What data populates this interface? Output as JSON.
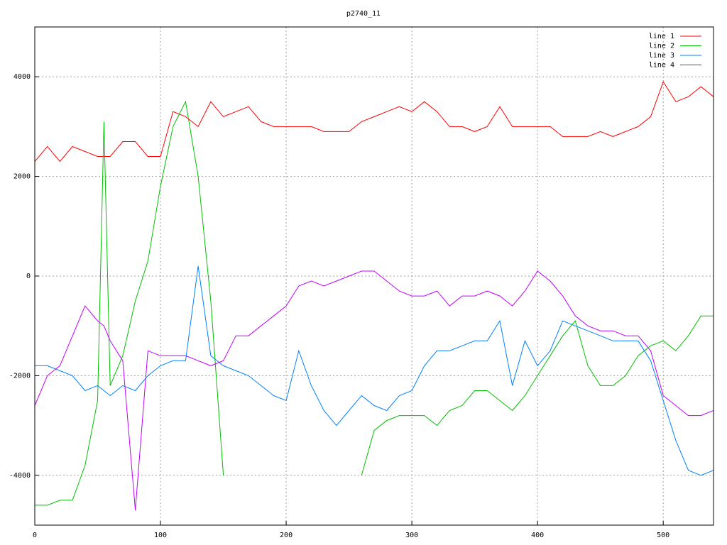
{
  "chart_data": {
    "type": "line",
    "title": "p2740_11",
    "x": [
      0,
      10,
      20,
      30,
      40,
      50,
      55,
      60,
      70,
      80,
      90,
      100,
      110,
      120,
      130,
      140,
      150,
      160,
      170,
      180,
      190,
      200,
      210,
      220,
      230,
      240,
      250,
      260,
      270,
      280,
      290,
      300,
      310,
      320,
      330,
      340,
      350,
      360,
      370,
      380,
      390,
      400,
      410,
      420,
      430,
      440,
      450,
      460,
      470,
      480,
      490,
      500,
      510,
      520,
      530,
      540
    ],
    "xlim": [
      0,
      540
    ],
    "xticks": [
      0,
      100,
      200,
      300,
      400,
      500
    ],
    "ylim": [
      -5000,
      5000
    ],
    "yticks": [
      -4000,
      -2000,
      0,
      2000,
      4000
    ],
    "grid": true,
    "legend": "top-right",
    "series": [
      {
        "name": "line 1",
        "color": "#ff0000",
        "values": [
          2300,
          2600,
          2300,
          2600,
          2500,
          2400,
          2400,
          2400,
          2700,
          2700,
          2400,
          2400,
          3300,
          3200,
          3000,
          3500,
          3200,
          3300,
          3400,
          3100,
          3000,
          3000,
          3000,
          3000,
          2900,
          2900,
          2900,
          3100,
          3200,
          3300,
          3400,
          3300,
          3500,
          3300,
          3000,
          3000,
          2900,
          3000,
          3400,
          3000,
          3000,
          3000,
          3000,
          2800,
          2800,
          2800,
          2900,
          2800,
          2900,
          3000,
          3200,
          3900,
          3500,
          3600,
          3800,
          3600
        ]
      },
      {
        "name": "line 2",
        "color": "#00c000",
        "values": [
          -4600,
          -4600,
          -4500,
          -4500,
          -3800,
          -2500,
          3100,
          -2200,
          -1600,
          -500,
          300,
          1800,
          3000,
          3500,
          2000,
          -500,
          -4000,
          null,
          null,
          null,
          null,
          null,
          null,
          null,
          null,
          null,
          null,
          -4000,
          -3100,
          -2900,
          -2800,
          -2800,
          -2800,
          -3000,
          -2700,
          -2600,
          -2300,
          -2300,
          -2500,
          -2700,
          -2400,
          -2000,
          -1600,
          -1200,
          -900,
          -1800,
          -2200,
          -2200,
          -2000,
          -1600,
          -1400,
          -1300,
          -1500,
          -1200,
          -800,
          -800
        ]
      },
      {
        "name": "line 3",
        "color": "#0080ff",
        "values": [
          -1800,
          -1800,
          -1900,
          -2000,
          -2300,
          -2200,
          -2300,
          -2400,
          -2200,
          -2300,
          -2000,
          -1800,
          -1700,
          -1700,
          200,
          -1600,
          -1800,
          -1900,
          -2000,
          -2200,
          -2400,
          -2500,
          -1500,
          -2200,
          -2700,
          -3000,
          -2700,
          -2400,
          -2600,
          -2700,
          -2400,
          -2300,
          -1800,
          -1500,
          -1500,
          -1400,
          -1300,
          -1300,
          -900,
          -2200,
          -1300,
          -1800,
          -1500,
          -900,
          -1000,
          -1100,
          -1200,
          -1300,
          -1300,
          -1300,
          -1700,
          -2500,
          -3300,
          -3900,
          -4000,
          -3900
        ]
      },
      {
        "name": "line 4",
        "color": "#c000ff",
        "values": [
          -2600,
          -2000,
          -1800,
          -1200,
          -600,
          -900,
          -1000,
          -1300,
          -1700,
          -4700,
          -1500,
          -1600,
          -1600,
          -1600,
          -1700,
          -1800,
          -1700,
          -1200,
          -1200,
          -1000,
          -800,
          -600,
          -200,
          -100,
          -200,
          -100,
          0,
          100,
          100,
          -100,
          -300,
          -400,
          -400,
          -300,
          -600,
          -400,
          -400,
          -300,
          -400,
          -600,
          -300,
          100,
          -100,
          -400,
          -800,
          -1000,
          -1100,
          -1100,
          -1200,
          -1200,
          -1500,
          -2400,
          -2600,
          -2800,
          -2800,
          -2700
        ]
      }
    ]
  }
}
